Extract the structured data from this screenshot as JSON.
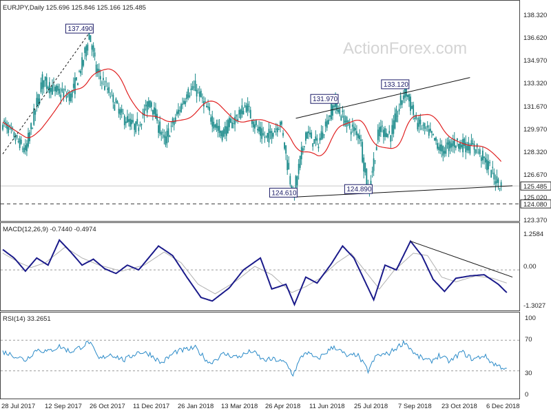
{
  "chart_data": [
    {
      "type": "candlestick",
      "symbol_header": "EURJPY,Daily  125.696 125.846 125.166 125.485",
      "watermark": "ActionForex.com",
      "y_ticks": [
        "138.320",
        "136.620",
        "134.970",
        "133.320",
        "131.670",
        "129.970",
        "128.320",
        "126.670",
        "125.020",
        "123.370"
      ],
      "ylim": [
        122.9,
        138.9
      ],
      "x_labels": [
        "28 Jul 2017",
        "12 Sep 2017",
        "26 Oct 2017",
        "11 Dec 2017",
        "26 Jan 2018",
        "13 Mar 2018",
        "26 Apr 2018",
        "11 Jun 2018",
        "25 Jul 2018",
        "7 Sep 2018",
        "23 Oct 2018",
        "6 Dec 2018"
      ],
      "current_price": {
        "label": "125.485",
        "value": 125.485
      },
      "support_level": {
        "label": "124.080",
        "value": 124.08
      },
      "annotations": [
        {
          "label": "137.490",
          "value": 137.49,
          "bar": 61
        },
        {
          "label": "133.120",
          "value": 133.12,
          "bar": 284
        },
        {
          "label": "131.970",
          "value": 131.97,
          "bar": 234
        },
        {
          "label": "124.610",
          "value": 124.61,
          "bar": 205
        },
        {
          "label": "124.890",
          "value": 124.89,
          "bar": 258
        }
      ],
      "trendlines": [
        {
          "from": {
            "bar": 0,
            "value": 128.0
          },
          "to": {
            "bar": 61,
            "value": 137.49
          },
          "style": "dashed"
        },
        {
          "from": {
            "bar": 205,
            "value": 124.61
          },
          "to": {
            "bar": 360,
            "value": 125.5
          },
          "style": "solid"
        },
        {
          "from": {
            "bar": 207,
            "value": 130.8
          },
          "to": {
            "bar": 330,
            "value": 134.0
          },
          "style": "solid"
        }
      ],
      "moving_average_color": "#e02020",
      "bar_color": "#1a8a8a",
      "bars": 360,
      "price_points": [
        [
          0,
          130.5
        ],
        [
          10,
          129.0
        ],
        [
          16,
          128.2
        ],
        [
          28,
          133.8
        ],
        [
          36,
          133.0
        ],
        [
          48,
          132.5
        ],
        [
          56,
          135.0
        ],
        [
          61,
          137.49
        ],
        [
          66,
          134.5
        ],
        [
          74,
          133.0
        ],
        [
          84,
          131.0
        ],
        [
          94,
          130.0
        ],
        [
          104,
          132.2
        ],
        [
          114,
          128.9
        ],
        [
          130,
          132.8
        ],
        [
          136,
          133.2
        ],
        [
          144,
          131.5
        ],
        [
          154,
          129.5
        ],
        [
          162,
          130.5
        ],
        [
          172,
          131.8
        ],
        [
          180,
          129.8
        ],
        [
          186,
          129.2
        ],
        [
          196,
          130.5
        ],
        [
          205,
          124.61
        ],
        [
          214,
          129.7
        ],
        [
          222,
          128.7
        ],
        [
          234,
          131.97
        ],
        [
          244,
          130.2
        ],
        [
          252,
          129.5
        ],
        [
          258,
          124.89
        ],
        [
          266,
          130.0
        ],
        [
          274,
          129.5
        ],
        [
          284,
          133.12
        ],
        [
          292,
          130.5
        ],
        [
          302,
          129.5
        ],
        [
          310,
          128.2
        ],
        [
          318,
          128.9
        ],
        [
          326,
          128.7
        ],
        [
          334,
          128.5
        ],
        [
          342,
          127.2
        ],
        [
          348,
          126.0
        ],
        [
          352,
          125.485
        ]
      ]
    },
    {
      "type": "line",
      "title": "MACD(12,26,9) -0.7440 -0.4974",
      "y_ticks": [
        "1.2584",
        "0.00",
        "-1.3027"
      ],
      "ylim": [
        -1.55,
        1.5
      ],
      "macd_color": "#1a1a8a",
      "signal_color": "#b0b0b0",
      "macd_points": [
        [
          0,
          0.85
        ],
        [
          8,
          0.5
        ],
        [
          16,
          -0.05
        ],
        [
          24,
          0.5
        ],
        [
          32,
          0.2
        ],
        [
          40,
          1.25
        ],
        [
          48,
          0.75
        ],
        [
          56,
          0.2
        ],
        [
          64,
          0.45
        ],
        [
          72,
          0.05
        ],
        [
          80,
          -0.15
        ],
        [
          88,
          0.2
        ],
        [
          96,
          0.0
        ],
        [
          110,
          1.0
        ],
        [
          120,
          0.6
        ],
        [
          130,
          -0.3
        ],
        [
          140,
          -1.15
        ],
        [
          148,
          -1.3
        ],
        [
          160,
          -0.75
        ],
        [
          170,
          0.0
        ],
        [
          182,
          0.5
        ],
        [
          190,
          -0.8
        ],
        [
          200,
          -0.6
        ],
        [
          206,
          -1.45
        ],
        [
          214,
          -0.3
        ],
        [
          222,
          -0.55
        ],
        [
          232,
          0.25
        ],
        [
          240,
          1.0
        ],
        [
          248,
          0.5
        ],
        [
          256,
          -0.5
        ],
        [
          262,
          -1.25
        ],
        [
          270,
          0.2
        ],
        [
          278,
          0.0
        ],
        [
          288,
          1.2
        ],
        [
          296,
          0.6
        ],
        [
          304,
          -0.4
        ],
        [
          312,
          -0.9
        ],
        [
          320,
          -0.35
        ],
        [
          330,
          -0.25
        ],
        [
          340,
          -0.2
        ],
        [
          350,
          -0.6
        ],
        [
          356,
          -0.95
        ]
      ],
      "signal_points": [
        [
          0,
          0.7
        ],
        [
          12,
          0.3
        ],
        [
          20,
          0.1
        ],
        [
          30,
          0.3
        ],
        [
          44,
          0.95
        ],
        [
          56,
          0.5
        ],
        [
          68,
          0.2
        ],
        [
          84,
          -0.05
        ],
        [
          100,
          0.2
        ],
        [
          114,
          0.75
        ],
        [
          126,
          0.3
        ],
        [
          138,
          -0.6
        ],
        [
          150,
          -1.0
        ],
        [
          164,
          -0.5
        ],
        [
          178,
          0.15
        ],
        [
          190,
          -0.2
        ],
        [
          204,
          -0.95
        ],
        [
          214,
          -0.7
        ],
        [
          224,
          -0.35
        ],
        [
          236,
          0.3
        ],
        [
          246,
          0.7
        ],
        [
          258,
          -0.2
        ],
        [
          266,
          -0.8
        ],
        [
          276,
          -0.05
        ],
        [
          290,
          0.7
        ],
        [
          300,
          0.6
        ],
        [
          310,
          -0.3
        ],
        [
          320,
          -0.5
        ],
        [
          334,
          -0.25
        ],
        [
          346,
          -0.35
        ],
        [
          356,
          -0.55
        ]
      ],
      "trendline": {
        "from": {
          "bar": 288,
          "value": 1.2
        },
        "to": {
          "bar": 360,
          "value": -0.3
        }
      }
    },
    {
      "type": "line",
      "title": "RSI(14) 33.2651",
      "y_ticks": [
        "100",
        "70",
        "30",
        "0"
      ],
      "ylim": [
        0,
        100
      ],
      "levels": [
        70,
        30
      ],
      "line_color": "#2a8ac8",
      "points": [
        [
          0,
          55
        ],
        [
          8,
          50
        ],
        [
          16,
          44
        ],
        [
          24,
          58
        ],
        [
          32,
          55
        ],
        [
          40,
          62
        ],
        [
          48,
          55
        ],
        [
          56,
          62
        ],
        [
          61,
          68
        ],
        [
          68,
          45
        ],
        [
          76,
          52
        ],
        [
          86,
          44
        ],
        [
          96,
          55
        ],
        [
          104,
          52
        ],
        [
          112,
          40
        ],
        [
          122,
          55
        ],
        [
          136,
          60
        ],
        [
          146,
          40
        ],
        [
          156,
          52
        ],
        [
          166,
          48
        ],
        [
          176,
          56
        ],
        [
          184,
          44
        ],
        [
          192,
          45
        ],
        [
          200,
          40
        ],
        [
          205,
          25
        ],
        [
          210,
          45
        ],
        [
          214,
          55
        ],
        [
          222,
          45
        ],
        [
          234,
          62
        ],
        [
          244,
          48
        ],
        [
          250,
          52
        ],
        [
          258,
          30
        ],
        [
          264,
          50
        ],
        [
          272,
          52
        ],
        [
          284,
          68
        ],
        [
          292,
          50
        ],
        [
          302,
          42
        ],
        [
          308,
          50
        ],
        [
          316,
          42
        ],
        [
          324,
          55
        ],
        [
          332,
          45
        ],
        [
          340,
          50
        ],
        [
          346,
          40
        ],
        [
          352,
          35
        ],
        [
          356,
          33.27
        ]
      ]
    }
  ]
}
